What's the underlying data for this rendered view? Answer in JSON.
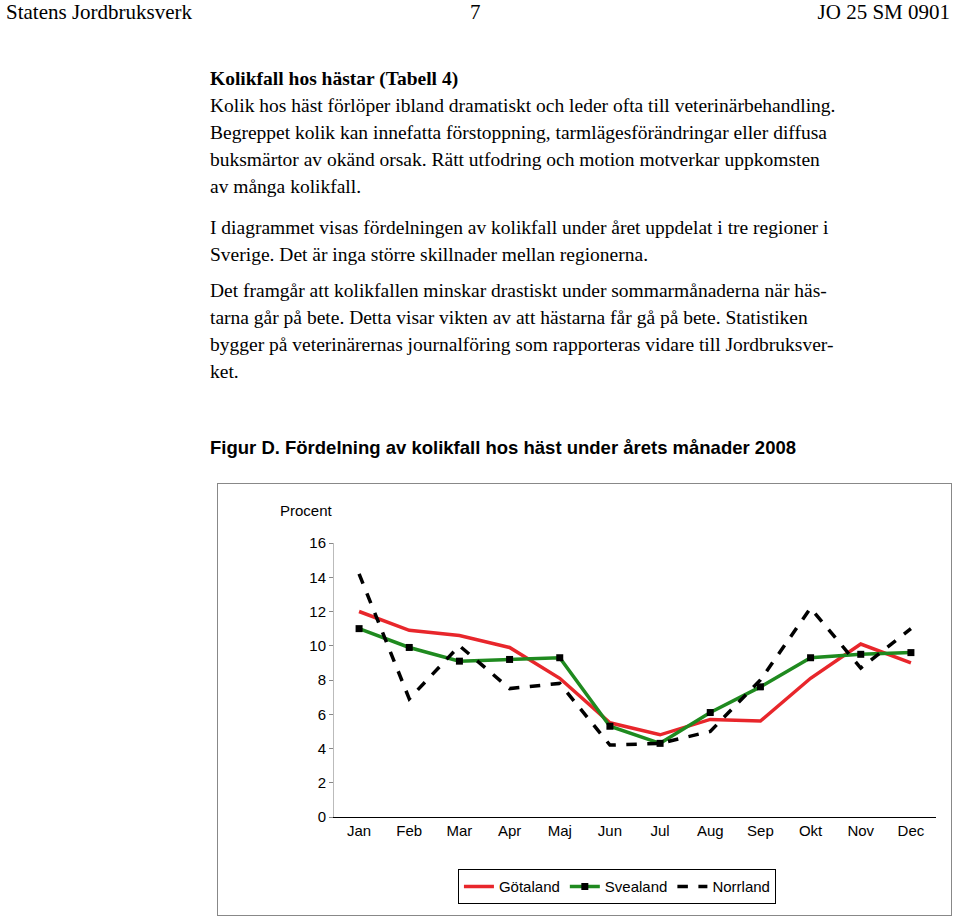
{
  "header": {
    "left": "Statens Jordbruksverk",
    "center": "7",
    "right": "JO 25 SM 0901"
  },
  "section": {
    "heading": "Kolikfall hos hästar (Tabell 4)",
    "paragraphs": [
      [
        "Kolik hos häst förlöper ibland dramatiskt och leder ofta till veterinärbehandling.",
        "Begreppet kolik kan innefatta förstoppning, tarmlägesförändringar eller diffusa",
        "buksmärtor av okänd orsak. Rätt utfodring och motion motverkar uppkomsten",
        "av många kolikfall."
      ],
      [
        "I diagrammet visas fördelningen av kolikfall under året uppdelat i tre regioner i",
        "Sverige. Det är inga större skillnader mellan regionerna."
      ],
      [
        "Det framgår att kolikfallen minskar drastiskt under sommarmånaderna när häs-",
        "tarna går på bete. Detta visar vikten av att hästarna får gå på bete. Statistiken",
        "bygger på veterinärernas journalföring som rapporteras vidare till Jordbruksver-",
        "ket."
      ]
    ]
  },
  "figure_title": "Figur D. Fördelning av kolikfall hos häst under årets månader 2008",
  "chart_data": {
    "type": "line",
    "y_label": "Procent",
    "categories": [
      "Jan",
      "Feb",
      "Mar",
      "Apr",
      "Maj",
      "Jun",
      "Jul",
      "Aug",
      "Sep",
      "Okt",
      "Nov",
      "Dec"
    ],
    "series": [
      {
        "name": "Götaland",
        "color": "#e8262b",
        "line_style": "solid",
        "values": [
          12.0,
          10.9,
          10.6,
          9.9,
          8.1,
          5.5,
          4.8,
          5.7,
          5.6,
          8.1,
          10.1,
          9.0
        ]
      },
      {
        "name": "Svealand",
        "color": "#1f8a1f",
        "line_style": "solid",
        "marker": "square",
        "values": [
          11.0,
          9.9,
          9.1,
          9.2,
          9.3,
          5.3,
          4.3,
          6.1,
          7.6,
          9.3,
          9.5,
          9.6
        ]
      },
      {
        "name": "Norrland",
        "color": "#000000",
        "line_style": "dash",
        "values": [
          14.2,
          6.9,
          10.0,
          7.5,
          7.8,
          4.2,
          4.3,
          5.0,
          8.0,
          12.2,
          8.7,
          11.0
        ]
      }
    ],
    "ylim": [
      0,
      16
    ],
    "yticks": [
      0,
      2,
      4,
      6,
      8,
      10,
      12,
      14,
      16
    ],
    "grid": false,
    "legend": "bottom"
  }
}
